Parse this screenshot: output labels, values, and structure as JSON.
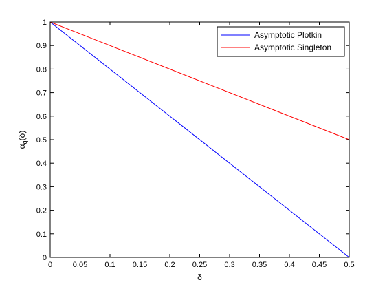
{
  "chart_data": {
    "type": "line",
    "title": "",
    "xlabel": "δ",
    "ylabel_main": "α",
    "ylabel_sub": "q",
    "ylabel_rest": "(δ)",
    "xlim": [
      0,
      0.5
    ],
    "ylim": [
      0,
      1
    ],
    "xticks": [
      0,
      0.05,
      0.1,
      0.15,
      0.2,
      0.25,
      0.3,
      0.35,
      0.4,
      0.45,
      0.5
    ],
    "xtick_labels": [
      "0",
      "0.05",
      "0.1",
      "0.15",
      "0.2",
      "0.25",
      "0.3",
      "0.35",
      "0.4",
      "0.45",
      "0.5"
    ],
    "yticks": [
      0,
      0.1,
      0.2,
      0.3,
      0.4,
      0.5,
      0.6,
      0.7,
      0.8,
      0.9,
      1
    ],
    "ytick_labels": [
      "0",
      "0.1",
      "0.2",
      "0.3",
      "0.4",
      "0.5",
      "0.6",
      "0.7",
      "0.8",
      "0.9",
      "1"
    ],
    "grid": false,
    "legend_position": "top-right",
    "series": [
      {
        "name": "Asymptotic Plotkin",
        "color": "#0000ff",
        "x": [
          0,
          0.5
        ],
        "y": [
          1,
          0
        ]
      },
      {
        "name": "Asymptotic Singleton",
        "color": "#ff0000",
        "x": [
          0,
          0.5
        ],
        "y": [
          1,
          0.5
        ]
      }
    ]
  }
}
